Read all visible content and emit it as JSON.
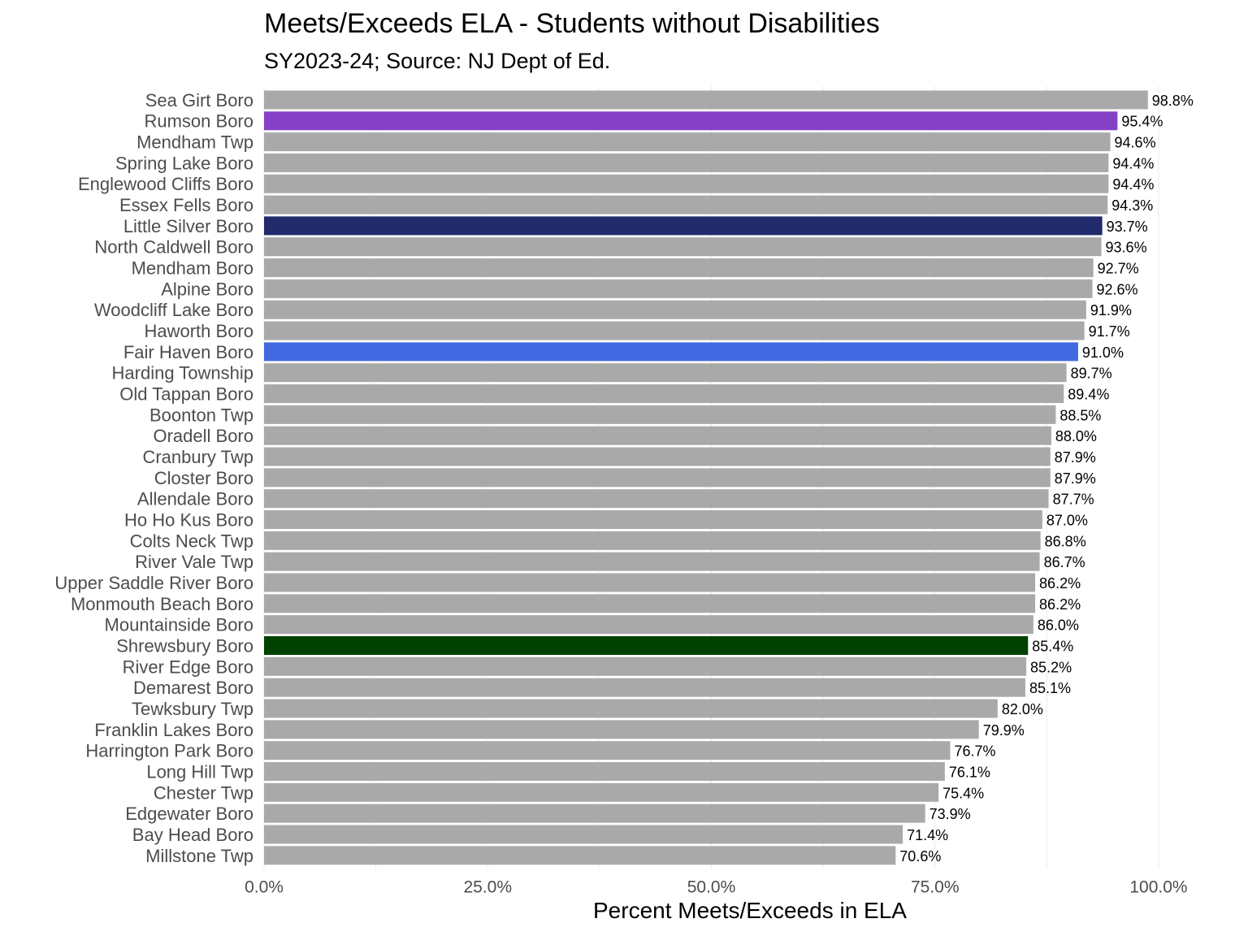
{
  "chart_data": {
    "type": "bar",
    "orientation": "horizontal",
    "title": "Meets/Exceeds ELA - Students without Disabilities",
    "subtitle": "SY2023-24; Source: NJ Dept of Ed.",
    "xlabel": "Percent Meets/Exceeds in ELA",
    "ylabel": "",
    "xlim": [
      0,
      100
    ],
    "xticks": [
      0,
      25,
      50,
      75,
      100
    ],
    "xtick_labels": [
      "0.0%",
      "25.0%",
      "50.0%",
      "75.0%",
      "100.0%"
    ],
    "grid": true,
    "default_color": "#a9a9a9",
    "categories": [
      "Sea Girt Boro",
      "Rumson Boro",
      "Mendham Twp",
      "Spring Lake Boro",
      "Englewood Cliffs Boro",
      "Essex Fells Boro",
      "Little Silver Boro",
      "North Caldwell Boro",
      "Mendham Boro",
      "Alpine Boro",
      "Woodcliff Lake Boro",
      "Haworth Boro",
      "Fair Haven Boro",
      "Harding Township",
      "Old Tappan Boro",
      "Boonton Twp",
      "Oradell Boro",
      "Cranbury Twp",
      "Closter Boro",
      "Allendale Boro",
      "Ho Ho Kus Boro",
      "Colts Neck Twp",
      "River Vale Twp",
      "Upper Saddle River Boro",
      "Monmouth Beach Boro",
      "Mountainside Boro",
      "Shrewsbury Boro",
      "River Edge Boro",
      "Demarest Boro",
      "Tewksbury Twp",
      "Franklin Lakes Boro",
      "Harrington Park Boro",
      "Long Hill Twp",
      "Chester Twp",
      "Edgewater Boro",
      "Bay Head Boro",
      "Millstone Twp"
    ],
    "values": [
      98.8,
      95.4,
      94.6,
      94.4,
      94.4,
      94.3,
      93.7,
      93.6,
      92.7,
      92.6,
      91.9,
      91.7,
      91.0,
      89.7,
      89.4,
      88.5,
      88.0,
      87.9,
      87.9,
      87.7,
      87.0,
      86.8,
      86.7,
      86.2,
      86.2,
      86.0,
      85.4,
      85.2,
      85.1,
      82.0,
      79.9,
      76.7,
      76.1,
      75.4,
      73.9,
      71.4,
      70.6
    ],
    "value_labels": [
      "98.8%",
      "95.4%",
      "94.6%",
      "94.4%",
      "94.4%",
      "94.3%",
      "93.7%",
      "93.6%",
      "92.7%",
      "92.6%",
      "91.9%",
      "91.7%",
      "91.0%",
      "89.7%",
      "89.4%",
      "88.5%",
      "88.0%",
      "87.9%",
      "87.9%",
      "87.7%",
      "87.0%",
      "86.8%",
      "86.7%",
      "86.2%",
      "86.2%",
      "86.0%",
      "85.4%",
      "85.2%",
      "85.1%",
      "82.0%",
      "79.9%",
      "76.7%",
      "76.1%",
      "75.4%",
      "73.9%",
      "71.4%",
      "70.6%"
    ],
    "highlight_colors": {
      "Rumson Boro": "#8541c6",
      "Little Silver Boro": "#212a6b",
      "Fair Haven Boro": "#4169e1",
      "Shrewsbury Boro": "#004100"
    }
  }
}
